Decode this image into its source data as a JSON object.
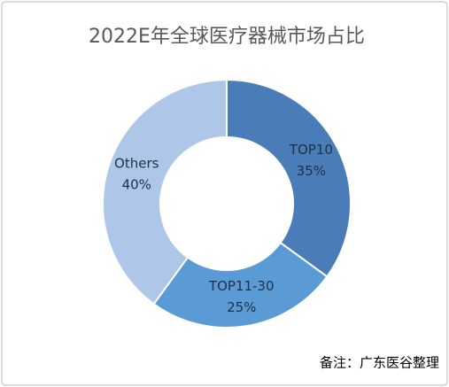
{
  "chart_data": {
    "type": "donut",
    "title": "2022E年全球医疗器械市场占比",
    "categories": [
      "TOP10",
      "TOP11-30",
      "Others"
    ],
    "values": [
      35,
      25,
      40
    ],
    "value_labels": [
      "35%",
      "25%",
      "40%"
    ],
    "colors": [
      "#4a7db8",
      "#5b9bd5",
      "#aec6e8"
    ],
    "note": "备注：广东医谷整理"
  }
}
